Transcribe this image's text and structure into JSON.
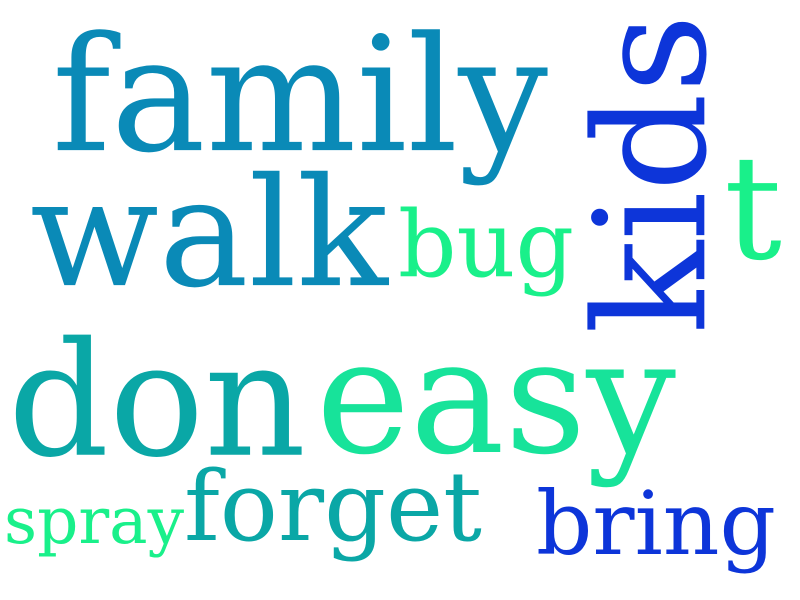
{
  "words": [
    {
      "text": "family",
      "color": "#0a8ab7"
    },
    {
      "text": "walk",
      "color": "#0a8ab7"
    },
    {
      "text": "kids",
      "color": "#0d35d9"
    },
    {
      "text": "t",
      "color": "#19f08a"
    },
    {
      "text": "bug",
      "color": "#19f08a"
    },
    {
      "text": "don",
      "color": "#0aa7a6"
    },
    {
      "text": "easy",
      "color": "#17e39a"
    },
    {
      "text": "spray",
      "color": "#19f08a"
    },
    {
      "text": "forget",
      "color": "#0aa7a6"
    },
    {
      "text": "bring",
      "color": "#0d35d9"
    }
  ]
}
